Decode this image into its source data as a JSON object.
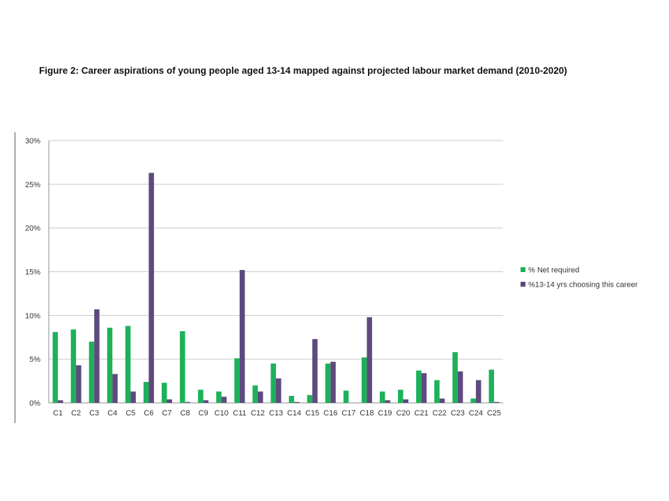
{
  "figure": {
    "title": "Figure 2: Career aspirations of young people aged 13-14 mapped against projected labour market demand (2010-2020)"
  },
  "colors": {
    "net_required": "#1db15a",
    "choosing": "#5e4a7e",
    "gridline": "#c8c8c8",
    "axis": "#888888"
  },
  "chart_data": {
    "type": "bar",
    "title": "",
    "xlabel": "",
    "ylabel": "",
    "ylim": [
      0,
      30
    ],
    "yticks": [
      "0%",
      "5%",
      "10%",
      "15%",
      "20%",
      "25%",
      "30%"
    ],
    "grid": true,
    "legend_position": "right",
    "categories": [
      "C1",
      "C2",
      "C3",
      "C4",
      "C5",
      "C6",
      "C7",
      "C8",
      "C9",
      "C10",
      "C11",
      "C12",
      "C13",
      "C14",
      "C15",
      "C16",
      "C17",
      "C18",
      "C19",
      "C20",
      "C21",
      "C22",
      "C23",
      "C24",
      "C25"
    ],
    "series": [
      {
        "name": "% Net required",
        "color": "#1db15a",
        "values": [
          8.1,
          8.4,
          7.0,
          8.6,
          8.8,
          2.4,
          2.3,
          8.2,
          1.5,
          1.3,
          5.1,
          2.0,
          4.5,
          0.8,
          0.9,
          4.5,
          1.4,
          5.2,
          1.3,
          1.5,
          3.7,
          2.6,
          5.8,
          0.5,
          3.8
        ]
      },
      {
        "name": "%13-14 yrs choosing this career",
        "color": "#5e4a7e",
        "values": [
          0.3,
          4.3,
          10.7,
          3.3,
          1.3,
          26.3,
          0.4,
          0.1,
          0.3,
          0.7,
          15.2,
          1.3,
          2.8,
          0.1,
          7.3,
          4.7,
          0.0,
          9.8,
          0.3,
          0.4,
          3.4,
          0.5,
          3.6,
          2.6,
          0.1
        ]
      }
    ]
  }
}
